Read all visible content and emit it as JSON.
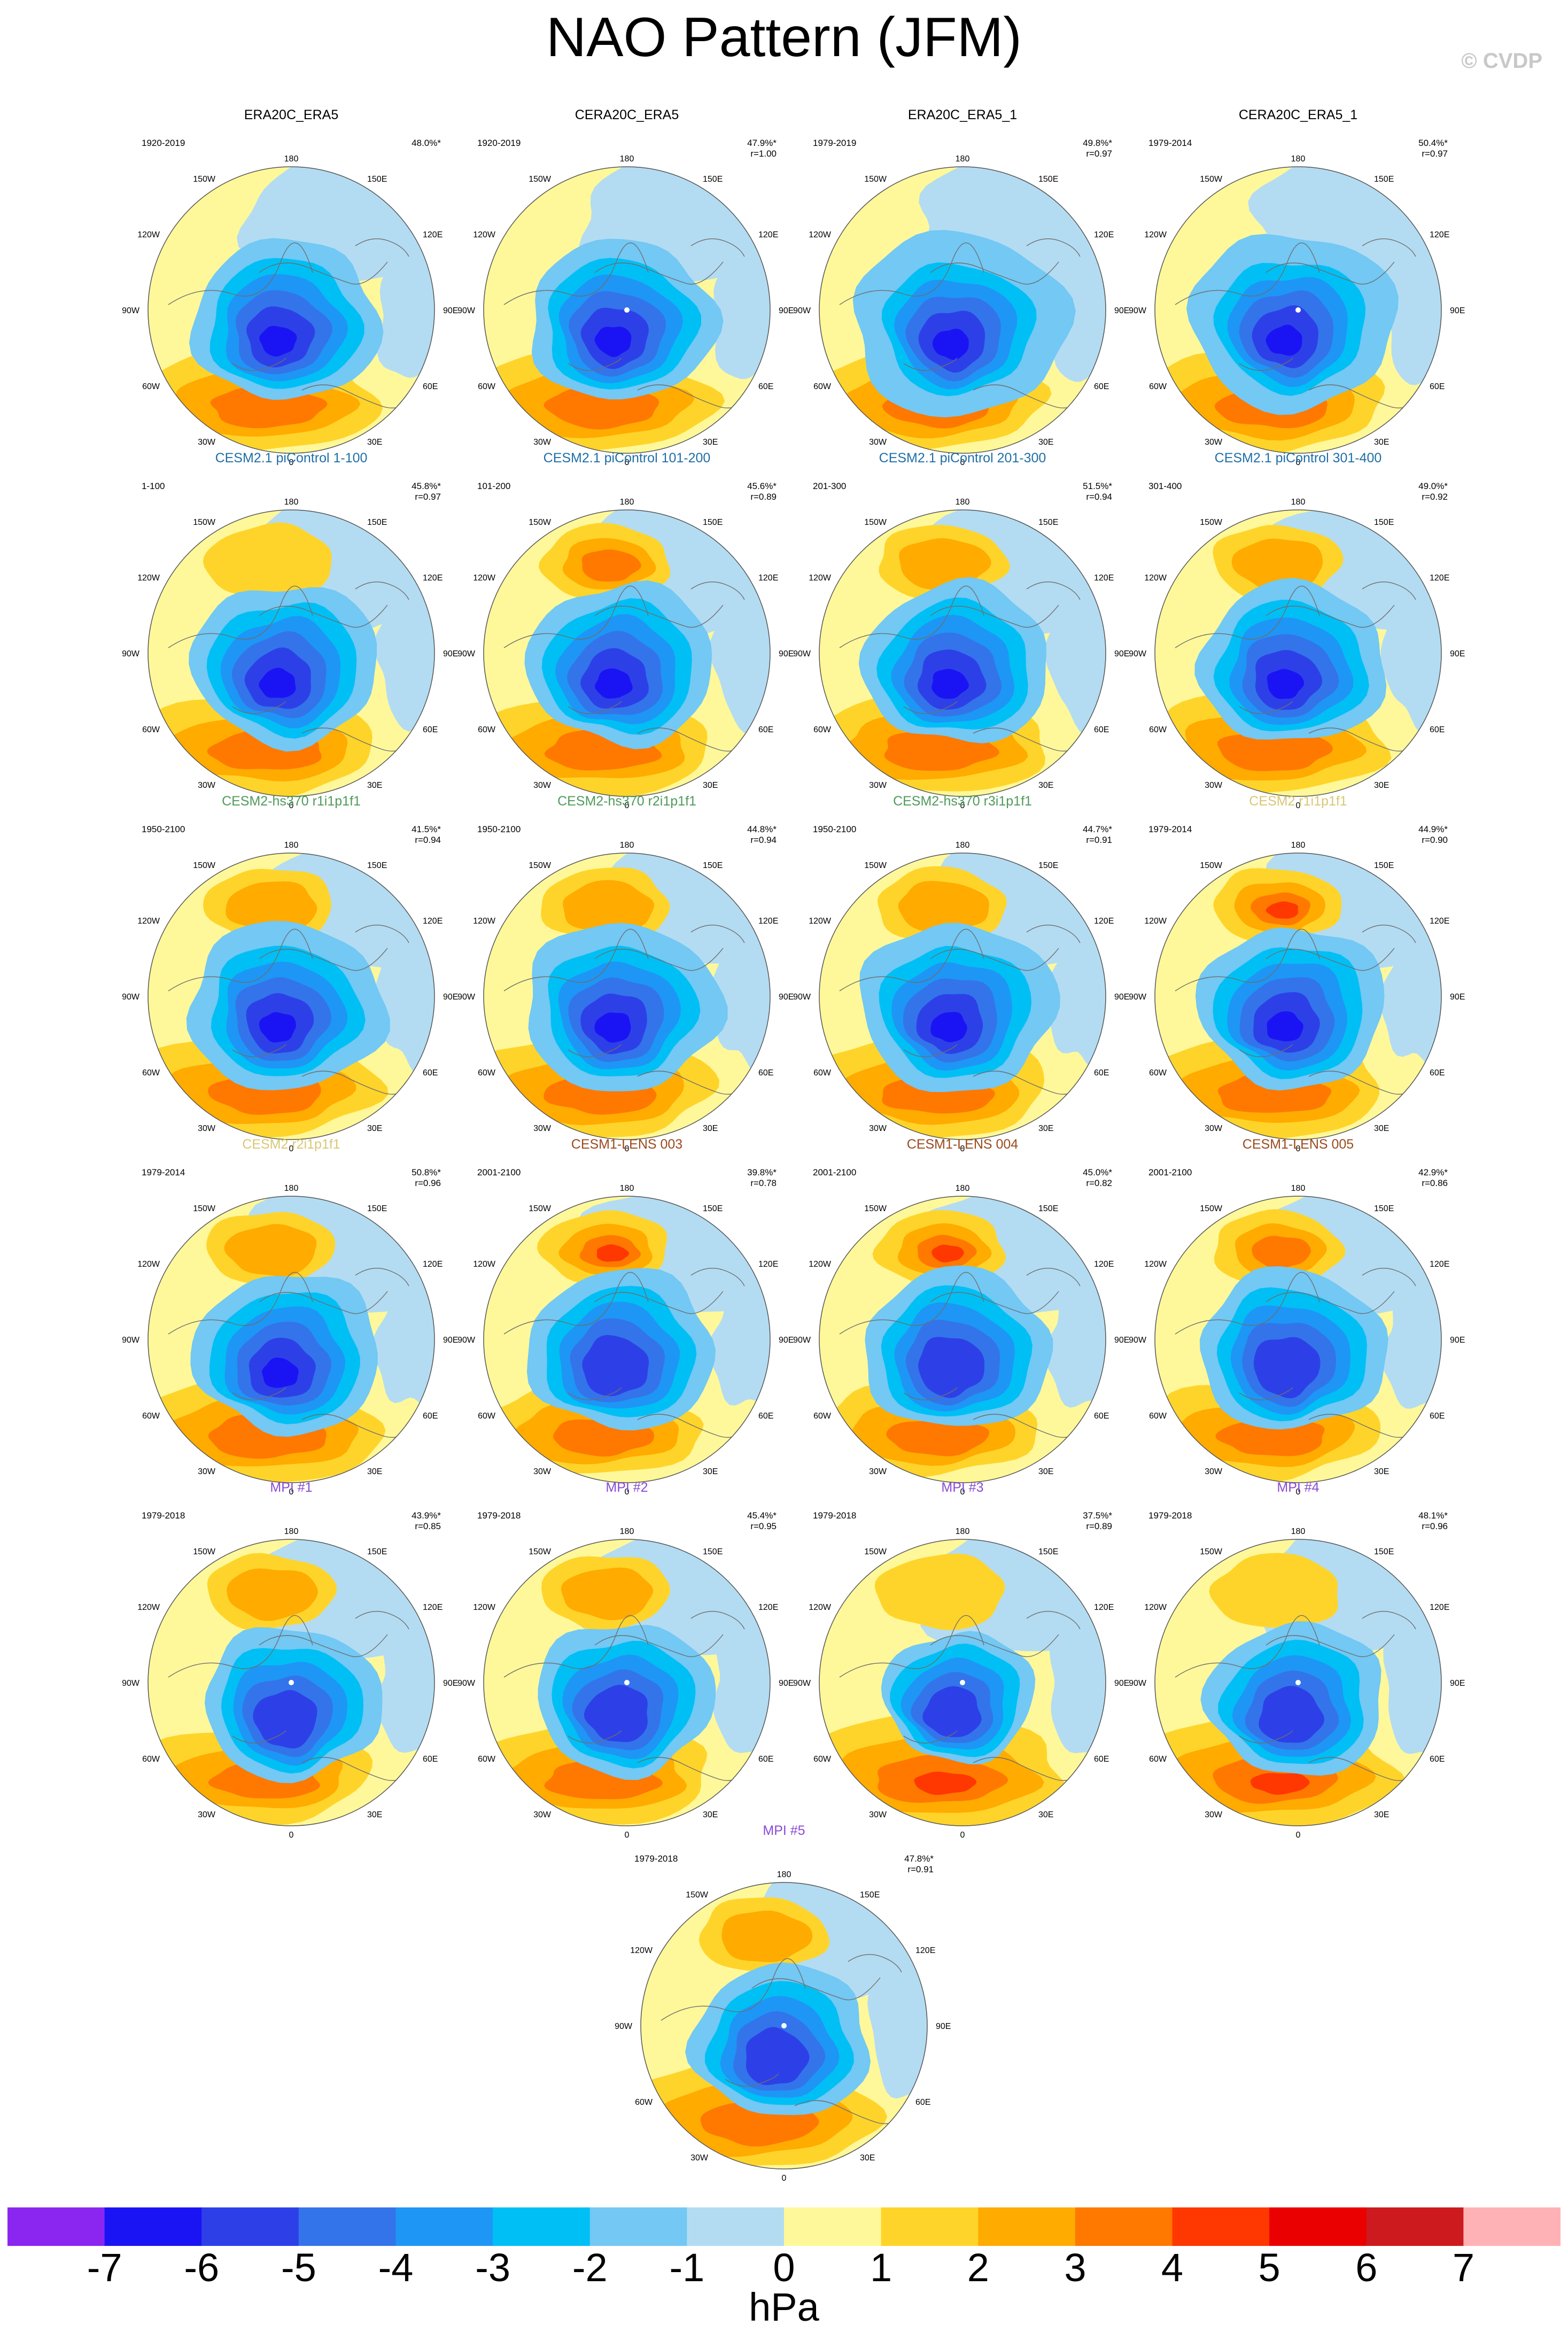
{
  "figure": {
    "title": "NAO Pattern (JFM)",
    "credit": "© CVDP",
    "colorbar": {
      "unit": "hPa",
      "tick_labels": [
        "-7",
        "-6",
        "-5",
        "-4",
        "-3",
        "-2",
        "-1",
        "0",
        "1",
        "2",
        "3",
        "4",
        "5",
        "6",
        "7"
      ],
      "colors": [
        "#8b26f0",
        "#1a14f5",
        "#2d40e8",
        "#3374ea",
        "#1e96f5",
        "#00bff5",
        "#73c8f4",
        "#b3dcf2",
        "#fff89a",
        "#ffd42a",
        "#ffab00",
        "#ff7800",
        "#ff3700",
        "#ea0000",
        "#cd1a1e",
        "#ffb2b5"
      ]
    },
    "longitude_labels": [
      "180",
      "150E",
      "120E",
      "90E",
      "60E",
      "30E",
      "0",
      "30W",
      "60W",
      "90W",
      "120W",
      "150W"
    ]
  },
  "panels": [
    {
      "title": "ERA20C_ERA5",
      "title_color": "#000000",
      "period": "1920-2019",
      "pct": "48.0%*",
      "r": "",
      "pole_dot": false,
      "top_high": 0,
      "blue_shift": 0.0,
      "blue_scale": 1.0,
      "blue_ext": 1.0,
      "deep": 1.0,
      "atl_high": 1.0
    },
    {
      "title": "CERA20C_ERA5",
      "title_color": "#000000",
      "period": "1920-2019",
      "pct": "47.9%*",
      "r": "r=1.00",
      "pole_dot": true,
      "top_high": 0,
      "blue_shift": 0.0,
      "blue_scale": 1.0,
      "blue_ext": 1.0,
      "deep": 1.0,
      "atl_high": 1.0
    },
    {
      "title": "ERA20C_ERA5_1",
      "title_color": "#000000",
      "period": "1979-2019",
      "pct": "49.8%*",
      "r": "r=0.97",
      "pole_dot": false,
      "top_high": 0,
      "blue_shift": 0.02,
      "blue_scale": 1.0,
      "blue_ext": 1.15,
      "deep": 1.0,
      "atl_high": 0.95
    },
    {
      "title": "CERA20C_ERA5_1",
      "title_color": "#000000",
      "period": "1979-2014",
      "pct": "50.4%*",
      "r": "r=0.97",
      "pole_dot": true,
      "top_high": 0,
      "blue_shift": 0.0,
      "blue_scale": 1.0,
      "blue_ext": 1.1,
      "deep": 1.0,
      "atl_high": 1.0
    },
    {
      "title": "CESM2.1 piControl 1-100",
      "title_color": "#1f6fa8",
      "period": "1-100",
      "pct": "45.8%*",
      "r": "r=0.97",
      "pole_dot": false,
      "top_high": 1,
      "blue_shift": 0.0,
      "blue_scale": 1.0,
      "blue_ext": 1.0,
      "deep": 1.0,
      "atl_high": 1.0
    },
    {
      "title": "CESM2.1 piControl 101-200",
      "title_color": "#1f6fa8",
      "period": "101-200",
      "pct": "45.6%*",
      "r": "r=0.89",
      "pole_dot": false,
      "top_high": 3,
      "blue_shift": 0.0,
      "blue_scale": 1.0,
      "blue_ext": 1.0,
      "deep": 1.0,
      "atl_high": 1.0
    },
    {
      "title": "CESM2.1 piControl 201-300",
      "title_color": "#1f6fa8",
      "period": "201-300",
      "pct": "51.5%*",
      "r": "r=0.94",
      "pole_dot": false,
      "top_high": 2,
      "blue_shift": 0.0,
      "blue_scale": 1.0,
      "blue_ext": 1.0,
      "deep": 1.0,
      "atl_high": 1.0
    },
    {
      "title": "CESM2.1 piControl 301-400",
      "title_color": "#1f6fa8",
      "period": "301-400",
      "pct": "49.0%*",
      "r": "r=0.92",
      "pole_dot": false,
      "top_high": 2,
      "blue_shift": 0.0,
      "blue_scale": 1.0,
      "blue_ext": 1.0,
      "deep": 1.0,
      "atl_high": 1.0
    },
    {
      "title": "CESM2-hs370 r1i1p1f1",
      "title_color": "#4f9a5a",
      "period": "1950-2100",
      "pct": "41.5%*",
      "r": "r=0.94",
      "pole_dot": false,
      "top_high": 2,
      "blue_shift": 0.0,
      "blue_scale": 1.0,
      "blue_ext": 1.05,
      "deep": 1.0,
      "atl_high": 1.0
    },
    {
      "title": "CESM2-hs370 r2i1p1f1",
      "title_color": "#4f9a5a",
      "period": "1950-2100",
      "pct": "44.8%*",
      "r": "r=0.94",
      "pole_dot": false,
      "top_high": 2,
      "blue_shift": 0.0,
      "blue_scale": 1.0,
      "blue_ext": 1.05,
      "deep": 1.0,
      "atl_high": 1.0
    },
    {
      "title": "CESM2-hs370 r3i1p1f1",
      "title_color": "#4f9a5a",
      "period": "1950-2100",
      "pct": "44.7%*",
      "r": "r=0.91",
      "pole_dot": false,
      "top_high": 2,
      "blue_shift": 0.0,
      "blue_scale": 1.0,
      "blue_ext": 1.05,
      "deep": 1.0,
      "atl_high": 1.0
    },
    {
      "title": "CESM2 r1i1p1f1",
      "title_color": "#d9c774",
      "period": "1979-2014",
      "pct": "44.9%*",
      "r": "r=0.90",
      "pole_dot": false,
      "top_high": 4,
      "blue_shift": 0.0,
      "blue_scale": 1.0,
      "blue_ext": 1.0,
      "deep": 1.0,
      "atl_high": 1.0
    },
    {
      "title": "CESM2 r2i1p1f1",
      "title_color": "#d9c774",
      "period": "1979-2014",
      "pct": "50.8%*",
      "r": "r=0.96",
      "pole_dot": false,
      "top_high": 2,
      "blue_shift": 0.02,
      "blue_scale": 1.0,
      "blue_ext": 1.0,
      "deep": 1.0,
      "atl_high": 1.05
    },
    {
      "title": "CESM1-LENS 003",
      "title_color": "#9a4a1e",
      "period": "2001-2100",
      "pct": "39.8%*",
      "r": "r=0.78",
      "pole_dot": false,
      "top_high": 4,
      "blue_shift": 0.0,
      "blue_scale": 1.0,
      "blue_ext": 1.0,
      "deep": 0.9,
      "atl_high": 0.9
    },
    {
      "title": "CESM1-LENS 004",
      "title_color": "#9a4a1e",
      "period": "2001-2100",
      "pct": "45.0%*",
      "r": "r=0.82",
      "pole_dot": false,
      "top_high": 4,
      "blue_shift": 0.0,
      "blue_scale": 1.0,
      "blue_ext": 1.0,
      "deep": 0.9,
      "atl_high": 0.9
    },
    {
      "title": "CESM1-LENS 005",
      "title_color": "#9a4a1e",
      "period": "2001-2100",
      "pct": "42.9%*",
      "r": "r=0.86",
      "pole_dot": false,
      "top_high": 3,
      "blue_shift": 0.0,
      "blue_scale": 1.0,
      "blue_ext": 1.0,
      "deep": 0.9,
      "atl_high": 0.95
    },
    {
      "title": "MPI #1",
      "title_color": "#8a4ad6",
      "period": "1979-2018",
      "pct": "43.9%*",
      "r": "r=0.85",
      "pole_dot": true,
      "top_high": 2,
      "blue_shift": 0.06,
      "blue_scale": 0.95,
      "blue_ext": 1.0,
      "deep": 0.95,
      "atl_high": 0.95
    },
    {
      "title": "MPI #2",
      "title_color": "#8a4ad6",
      "period": "1979-2018",
      "pct": "45.4%*",
      "r": "r=0.95",
      "pole_dot": true,
      "top_high": 2,
      "blue_shift": 0.03,
      "blue_scale": 0.95,
      "blue_ext": 1.0,
      "deep": 0.95,
      "atl_high": 1.0
    },
    {
      "title": "MPI #3",
      "title_color": "#8a4ad6",
      "period": "1979-2018",
      "pct": "37.5%*",
      "r": "r=0.89",
      "pole_dot": true,
      "top_high": 1,
      "blue_shift": 0.02,
      "blue_scale": 0.85,
      "blue_ext": 0.95,
      "deep": 0.85,
      "atl_high": 1.15
    },
    {
      "title": "MPI #4",
      "title_color": "#8a4ad6",
      "period": "1979-2018",
      "pct": "48.1%*",
      "r": "r=0.96",
      "pole_dot": true,
      "top_high": 1,
      "blue_shift": 0.04,
      "blue_scale": 0.95,
      "blue_ext": 1.0,
      "deep": 0.95,
      "atl_high": 1.1
    },
    {
      "title": "MPI #5",
      "title_color": "#8a4ad6",
      "period": "1979-2018",
      "pct": "47.8%*",
      "r": "r=0.91",
      "pole_dot": true,
      "top_high": 2,
      "blue_shift": 0.03,
      "blue_scale": 0.95,
      "blue_ext": 1.0,
      "deep": 0.95,
      "atl_high": 1.05
    }
  ]
}
